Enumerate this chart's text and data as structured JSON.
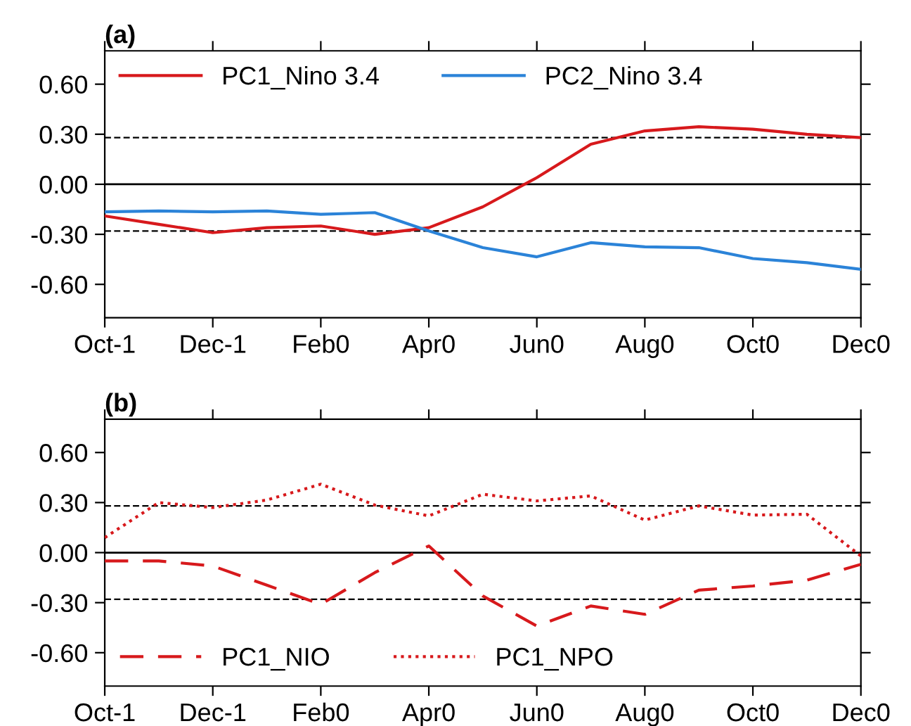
{
  "chart_data": [
    {
      "type": "line",
      "title": "(a)",
      "categories": [
        "Oct-1",
        null,
        "Dec-1",
        null,
        "Feb0",
        null,
        "Apr0",
        null,
        "Jun0",
        null,
        "Aug0",
        null,
        "Oct0",
        null,
        "Dec0"
      ],
      "series": [
        {
          "name": "PC1_Nino 3.4",
          "color": "#d7191c",
          "line_style": "solid",
          "values": [
            -0.19,
            -0.24,
            -0.29,
            -0.26,
            -0.25,
            -0.3,
            -0.26,
            -0.135,
            0.04,
            0.24,
            0.32,
            0.345,
            0.33,
            0.3,
            0.28
          ]
        },
        {
          "name": "PC2_Nino 3.4",
          "color": "#2b83d8",
          "line_style": "solid",
          "values": [
            -0.165,
            -0.16,
            -0.165,
            -0.16,
            -0.18,
            -0.17,
            -0.28,
            -0.38,
            -0.435,
            -0.35,
            -0.375,
            -0.38,
            -0.445,
            -0.47,
            -0.51
          ]
        }
      ],
      "ylim": [
        -0.8,
        0.8
      ],
      "yticks": [
        {
          "value": 0.6,
          "label": "0.60"
        },
        {
          "value": 0.3,
          "label": "0.30"
        },
        {
          "value": 0,
          "label": "0.00"
        },
        {
          "value": -0.3,
          "label": "-0.30"
        },
        {
          "value": -0.6,
          "label": "-0.60"
        }
      ],
      "ref_lines": [
        {
          "axis": "y",
          "value": 0.28,
          "line_style": "dashed",
          "color": "#000000"
        },
        {
          "axis": "y",
          "value": 0,
          "line_style": "solid",
          "color": "#000000"
        },
        {
          "axis": "y",
          "value": -0.28,
          "line_style": "dashed",
          "color": "#000000"
        }
      ],
      "legend": "top left",
      "grid": false
    },
    {
      "type": "line",
      "title": "(b)",
      "categories": [
        "Oct-1",
        null,
        "Dec-1",
        null,
        "Feb0",
        null,
        "Apr0",
        null,
        "Jun0",
        null,
        "Aug0",
        null,
        "Oct0",
        null,
        "Dec0"
      ],
      "series": [
        {
          "name": "PC1_NIO",
          "color": "#d7191c",
          "line_style": "dashed",
          "values": [
            -0.05,
            -0.05,
            -0.08,
            -0.195,
            -0.31,
            -0.12,
            0.04,
            -0.26,
            -0.44,
            -0.32,
            -0.37,
            -0.225,
            -0.2,
            -0.165,
            -0.07
          ]
        },
        {
          "name": "PC1_NPO",
          "color": "#d7191c",
          "line_style": "dotted",
          "values": [
            0.09,
            0.3,
            0.27,
            0.315,
            0.41,
            0.285,
            0.22,
            0.35,
            0.31,
            0.34,
            0.195,
            0.28,
            0.225,
            0.23,
            -0.02
          ]
        }
      ],
      "ylim": [
        -0.8,
        0.8
      ],
      "yticks": [
        {
          "value": 0.6,
          "label": "0.60"
        },
        {
          "value": 0.3,
          "label": "0.30"
        },
        {
          "value": 0,
          "label": "0.00"
        },
        {
          "value": -0.3,
          "label": "-0.30"
        },
        {
          "value": -0.6,
          "label": "-0.60"
        }
      ],
      "ref_lines": [
        {
          "axis": "y",
          "value": 0.28,
          "line_style": "dashed",
          "color": "#000000"
        },
        {
          "axis": "y",
          "value": 0,
          "line_style": "solid",
          "color": "#000000"
        },
        {
          "axis": "y",
          "value": -0.28,
          "line_style": "dashed",
          "color": "#000000"
        }
      ],
      "legend": "bottom left",
      "grid": false
    }
  ]
}
